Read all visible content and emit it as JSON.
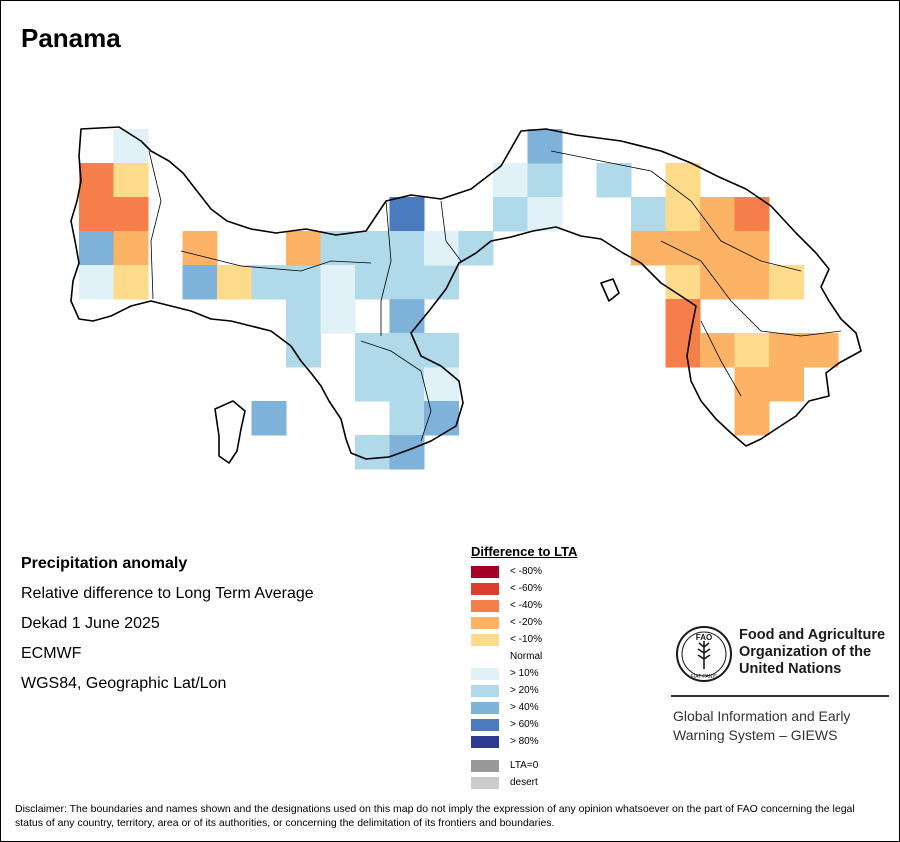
{
  "title": "Panama",
  "info": {
    "heading": "Precipitation anomaly",
    "line1": "Relative difference to Long Term Average",
    "line2": "Dekad 1 June 2025",
    "line3": "ECMWF",
    "line4": "WGS84, Geographic Lat/Lon"
  },
  "legend": {
    "title": "Difference to LTA",
    "items": [
      {
        "label": "< -80%",
        "color": "#a50026"
      },
      {
        "label": "< -60%",
        "color": "#dd3d2d"
      },
      {
        "label": "< -40%",
        "color": "#f67e4b"
      },
      {
        "label": "< -20%",
        "color": "#fdb366"
      },
      {
        "label": "< -10%",
        "color": "#feda8b"
      },
      {
        "label": "Normal",
        "color": "#ffffff"
      },
      {
        "label": "> 10%",
        "color": "#e0f1f8"
      },
      {
        "label": "> 20%",
        "color": "#b0d9e9"
      },
      {
        "label": "> 40%",
        "color": "#7eb2d9"
      },
      {
        "label": "> 60%",
        "color": "#4a7bbf"
      },
      {
        "label": "> 80%",
        "color": "#2d3a94"
      }
    ],
    "extra": [
      {
        "label": "LTA=0",
        "color": "#999999"
      },
      {
        "label": "desert",
        "color": "#cccccc"
      }
    ]
  },
  "fao": {
    "name_line1": "Food and Agriculture",
    "name_line2": "Organization of the",
    "name_line3": "United Nations",
    "logo_text": "FAO",
    "motto": "FIAT PANIS",
    "giews_line1": "Global Information and Early",
    "giews_line2": "Warning System – GIEWS"
  },
  "disclaimer": "Disclaimer: The boundaries and names shown and the designations used on this map do not imply the expression of any opinion whatsoever on the part of FAO concerning the legal status of any country, territory, area or of its authorities, or concerning the delimitation of its frontiers and boundaries.",
  "grid": {
    "columns": 22,
    "rows": 10,
    "cells": [
      {
        "c": 1,
        "r": 0,
        "cat": "p10"
      },
      {
        "c": 0,
        "r": 1,
        "cat": "m40"
      },
      {
        "c": 1,
        "r": 1,
        "cat": "m10"
      },
      {
        "c": 0,
        "r": 2,
        "cat": "m40"
      },
      {
        "c": 1,
        "r": 2,
        "cat": "m40"
      },
      {
        "c": 0,
        "r": 3,
        "cat": "p40"
      },
      {
        "c": 1,
        "r": 3,
        "cat": "m20"
      },
      {
        "c": 0,
        "r": 4,
        "cat": "p10"
      },
      {
        "c": 1,
        "r": 4,
        "cat": "m10"
      },
      {
        "c": 3,
        "r": 3,
        "cat": "m20"
      },
      {
        "c": 3,
        "r": 4,
        "cat": "p40"
      },
      {
        "c": 4,
        "r": 4,
        "cat": "m10"
      },
      {
        "c": 5,
        "r": 4,
        "cat": "p20"
      },
      {
        "c": 6,
        "r": 4,
        "cat": "p20"
      },
      {
        "c": 6,
        "r": 3,
        "cat": "m20"
      },
      {
        "c": 7,
        "r": 3,
        "cat": "p20"
      },
      {
        "c": 6,
        "r": 5,
        "cat": "p20"
      },
      {
        "c": 7,
        "r": 4,
        "cat": "p10"
      },
      {
        "c": 7,
        "r": 5,
        "cat": "p10"
      },
      {
        "c": 6,
        "r": 6,
        "cat": "p20"
      },
      {
        "c": 5,
        "r": 8,
        "cat": "p40"
      },
      {
        "c": 8,
        "r": 3,
        "cat": "p20"
      },
      {
        "c": 8,
        "r": 4,
        "cat": "p20"
      },
      {
        "c": 9,
        "r": 4,
        "cat": "p20"
      },
      {
        "c": 10,
        "r": 4,
        "cat": "p20"
      },
      {
        "c": 9,
        "r": 2,
        "cat": "p60"
      },
      {
        "c": 9,
        "r": 3,
        "cat": "p20"
      },
      {
        "c": 10,
        "r": 3,
        "cat": "p10"
      },
      {
        "c": 11,
        "r": 3,
        "cat": "p20"
      },
      {
        "c": 9,
        "r": 5,
        "cat": "p40"
      },
      {
        "c": 8,
        "r": 6,
        "cat": "p20"
      },
      {
        "c": 8,
        "r": 7,
        "cat": "p20"
      },
      {
        "c": 9,
        "r": 6,
        "cat": "p20"
      },
      {
        "c": 9,
        "r": 7,
        "cat": "p20"
      },
      {
        "c": 10,
        "r": 7,
        "cat": "p10"
      },
      {
        "c": 9,
        "r": 8,
        "cat": "p20"
      },
      {
        "c": 10,
        "r": 8,
        "cat": "p40"
      },
      {
        "c": 10,
        "r": 6,
        "cat": "p20"
      },
      {
        "c": 8,
        "r": 9,
        "cat": "p20"
      },
      {
        "c": 9,
        "r": 9,
        "cat": "p40"
      },
      {
        "c": 12,
        "r": 1,
        "cat": "p10"
      },
      {
        "c": 12,
        "r": 2,
        "cat": "p20"
      },
      {
        "c": 13,
        "r": 1,
        "cat": "p20"
      },
      {
        "c": 13,
        "r": 2,
        "cat": "p10"
      },
      {
        "c": 13,
        "r": 0,
        "cat": "p40"
      },
      {
        "c": 15,
        "r": 1,
        "cat": "p20"
      },
      {
        "c": 16,
        "r": 2,
        "cat": "p20"
      },
      {
        "c": 17,
        "r": 1,
        "cat": "m10"
      },
      {
        "c": 17,
        "r": 2,
        "cat": "m10"
      },
      {
        "c": 16,
        "r": 3,
        "cat": "m20"
      },
      {
        "c": 17,
        "r": 3,
        "cat": "m20"
      },
      {
        "c": 18,
        "r": 2,
        "cat": "m20"
      },
      {
        "c": 19,
        "r": 2,
        "cat": "m40"
      },
      {
        "c": 18,
        "r": 3,
        "cat": "m20"
      },
      {
        "c": 19,
        "r": 3,
        "cat": "m20"
      },
      {
        "c": 17,
        "r": 4,
        "cat": "m10"
      },
      {
        "c": 18,
        "r": 4,
        "cat": "m20"
      },
      {
        "c": 19,
        "r": 4,
        "cat": "m20"
      },
      {
        "c": 20,
        "r": 4,
        "cat": "m10"
      },
      {
        "c": 17,
        "r": 5,
        "cat": "m40"
      },
      {
        "c": 17,
        "r": 6,
        "cat": "m40"
      },
      {
        "c": 18,
        "r": 6,
        "cat": "m20"
      },
      {
        "c": 19,
        "r": 6,
        "cat": "m10"
      },
      {
        "c": 20,
        "r": 6,
        "cat": "m20"
      },
      {
        "c": 21,
        "r": 6,
        "cat": "m20"
      },
      {
        "c": 19,
        "r": 7,
        "cat": "m20"
      },
      {
        "c": 20,
        "r": 7,
        "cat": "m20"
      },
      {
        "c": 19,
        "r": 8,
        "cat": "m20"
      }
    ]
  }
}
